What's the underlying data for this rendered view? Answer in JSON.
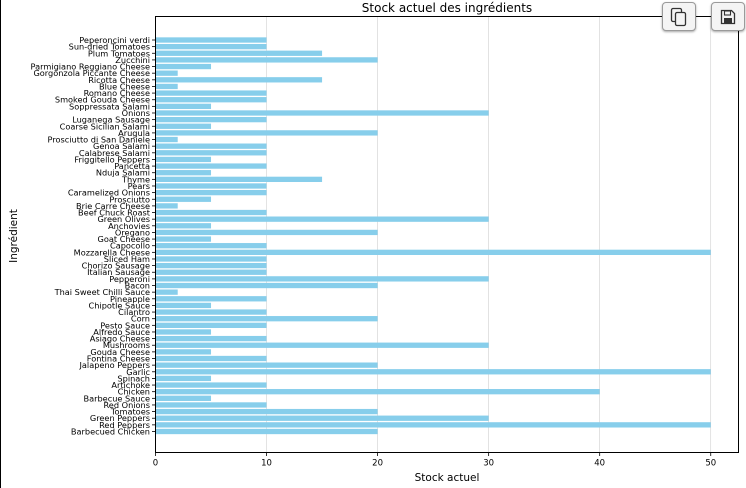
{
  "chart_data": {
    "type": "bar",
    "orientation": "horizontal",
    "title": "Stock actuel des ingrédients",
    "xlabel": "Stock actuel",
    "ylabel": "Ingrédient",
    "xlim": [
      0,
      52.5
    ],
    "xticks": [
      0,
      10,
      20,
      30,
      40,
      50
    ],
    "grid": "x",
    "bar_color": "#87ceeb",
    "categories": [
      "Barbecued Chicken",
      "Red Peppers",
      "Green Peppers",
      "Tomatoes",
      "Red Onions",
      "Barbecue Sauce",
      "Chicken",
      "Artichoke",
      "Spinach",
      "Garlic",
      "Jalapeno Peppers",
      "Fontina Cheese",
      "Gouda Cheese",
      "Mushrooms",
      "Asiago Cheese",
      "Alfredo Sauce",
      "Pesto Sauce",
      "Corn",
      "Cilantro",
      "Chipotle Sauce",
      "Pineapple",
      "Thai Sweet Chilli Sauce",
      "Bacon",
      "Pepperoni",
      "Italian Sausage",
      "Chorizo Sausage",
      "Sliced Ham",
      "Mozzarella Cheese",
      "Capocollo",
      "Goat Cheese",
      "Oregano",
      "Anchovies",
      "Green Olives",
      "Beef Chuck Roast",
      "Brie Carre Cheese",
      "Prosciutto",
      "Caramelized Onions",
      "Pears",
      "Thyme",
      "Nduja Salami",
      "Pancetta",
      "Friggitello Peppers",
      "Calabrese Salami",
      "Genoa Salami",
      "Prosciutto di San Daniele",
      "Arugula",
      "Coarse Sicilian Salami",
      "Luganega Sausage",
      "Onions",
      "Soppressata Salami",
      "Smoked Gouda Cheese",
      "Romano Cheese",
      "Blue Cheese",
      "Ricotta Cheese",
      "Gorgonzola Piccante Cheese",
      "Parmigiano Reggiano Cheese",
      "Zucchini",
      "Plum Tomatoes",
      "Sun-dried Tomatoes",
      "Peperoncini verdi"
    ],
    "values": [
      20,
      50,
      30,
      20,
      10,
      5,
      40,
      10,
      5,
      50,
      20,
      10,
      5,
      30,
      10,
      5,
      10,
      20,
      10,
      5,
      10,
      2,
      20,
      30,
      10,
      10,
      10,
      50,
      10,
      5,
      20,
      5,
      30,
      10,
      2,
      5,
      10,
      10,
      15,
      5,
      10,
      5,
      10,
      10,
      2,
      20,
      5,
      10,
      30,
      5,
      10,
      10,
      2,
      15,
      2,
      5,
      20,
      15,
      10,
      10
    ]
  },
  "toolbar": {
    "copy_icon": "copy-icon",
    "save_icon": "save-icon"
  }
}
